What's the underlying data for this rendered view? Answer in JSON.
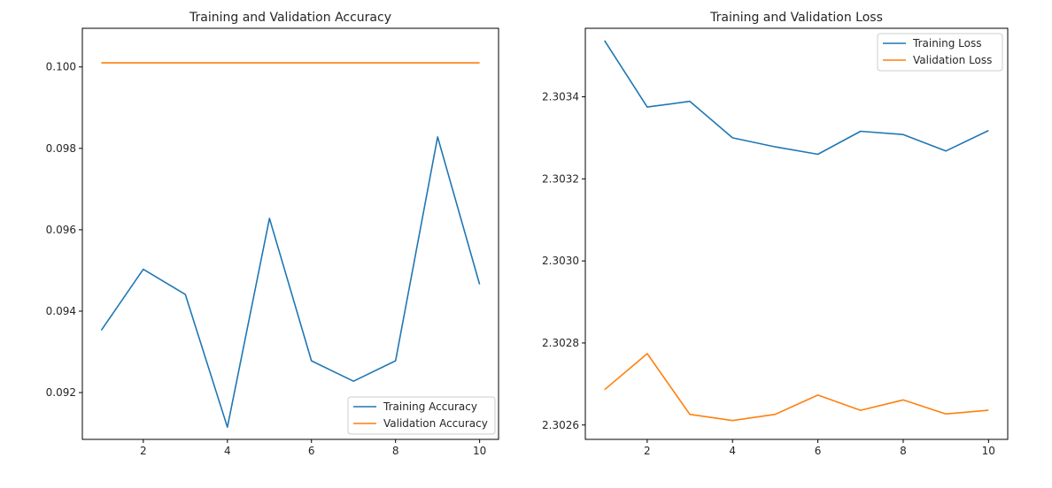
{
  "chart_data": [
    {
      "type": "line",
      "title": "Training and Validation Accuracy",
      "xlabel": "",
      "ylabel": "",
      "xlim": [
        0.55,
        10.45
      ],
      "ylim": [
        0.09085,
        0.10095
      ],
      "xticks": [
        2,
        4,
        6,
        8,
        10
      ],
      "yticks": [
        0.092,
        0.094,
        0.096,
        0.098,
        0.1
      ],
      "ytick_labels": [
        "0.092",
        "0.094",
        "0.096",
        "0.098",
        "0.100"
      ],
      "legend_loc": "lower-right",
      "grid": false,
      "x": [
        1,
        2,
        3,
        4,
        5,
        6,
        7,
        8,
        9,
        10
      ],
      "series": [
        {
          "name": "Training Accuracy",
          "color": "#1f77b4",
          "values": [
            0.09353,
            0.09503,
            0.09441,
            0.09115,
            0.09628,
            0.09278,
            0.09228,
            0.09278,
            0.09828,
            0.09466
          ]
        },
        {
          "name": "Validation Accuracy",
          "color": "#ff7f0e",
          "values": [
            0.1001,
            0.1001,
            0.1001,
            0.1001,
            0.1001,
            0.1001,
            0.1001,
            0.1001,
            0.1001,
            0.1001
          ]
        }
      ]
    },
    {
      "type": "line",
      "title": "Training and Validation Loss",
      "xlabel": "",
      "ylabel": "",
      "xlim": [
        0.55,
        10.45
      ],
      "ylim": [
        2.302565,
        2.303567
      ],
      "xticks": [
        2,
        4,
        6,
        8,
        10
      ],
      "yticks": [
        2.3026,
        2.3028,
        2.303,
        2.3032,
        2.3034
      ],
      "ytick_labels": [
        "2.3026",
        "2.3028",
        "2.3030",
        "2.3032",
        "2.3034"
      ],
      "legend_loc": "upper-right",
      "grid": false,
      "x": [
        1,
        2,
        3,
        4,
        5,
        6,
        7,
        8,
        9,
        10
      ],
      "series": [
        {
          "name": "Training Loss",
          "color": "#1f77b4",
          "values": [
            2.303537,
            2.303375,
            2.303389,
            2.3033,
            2.303278,
            2.30326,
            2.303316,
            2.303308,
            2.303268,
            2.303318
          ]
        },
        {
          "name": "Validation Loss",
          "color": "#ff7f0e",
          "values": [
            2.302686,
            2.302774,
            2.302626,
            2.302611,
            2.302626,
            2.302673,
            2.302636,
            2.302661,
            2.302627,
            2.302636
          ]
        }
      ]
    }
  ]
}
